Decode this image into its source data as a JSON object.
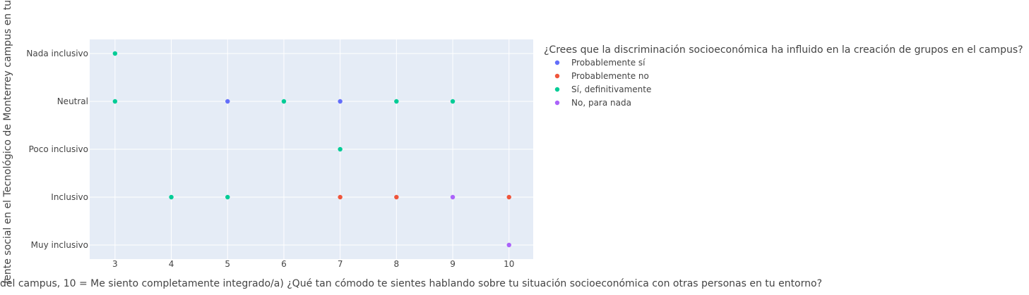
{
  "chart_data": {
    "type": "scatter",
    "xlabel": "del campus, 10 = Me siento completamente integrado/a) ¿Qué tan cómodo te sientes hablando sobre tu situación socioeconómica con otras personas en tu entorno?",
    "ylabel": "iente social en el Tecnológico de Monterrey campus en tu",
    "x_ticks": [
      3,
      4,
      5,
      6,
      7,
      8,
      9,
      10
    ],
    "xlim": [
      2.55,
      10.43
    ],
    "y_categories": [
      "Muy inclusivo",
      "Inclusivo",
      "Poco inclusivo",
      "Neutral",
      "Nada inclusivo"
    ],
    "grid": true,
    "legend": {
      "title": "¿Crees que la discriminación socioeconómica ha influido en la creación de grupos en el campus?",
      "placement": "right"
    },
    "series": [
      {
        "name": "Probablemente sí",
        "color": "#636efa",
        "points": [
          {
            "x": 5,
            "y": "Neutral"
          },
          {
            "x": 7,
            "y": "Neutral"
          }
        ]
      },
      {
        "name": "Probablemente no",
        "color": "#ef553b",
        "points": [
          {
            "x": 7,
            "y": "Inclusivo"
          },
          {
            "x": 8,
            "y": "Inclusivo"
          },
          {
            "x": 10,
            "y": "Inclusivo"
          }
        ]
      },
      {
        "name": "Sí, definitivamente",
        "color": "#00cc96",
        "points": [
          {
            "x": 3,
            "y": "Nada inclusivo"
          },
          {
            "x": 3,
            "y": "Neutral"
          },
          {
            "x": 6,
            "y": "Neutral"
          },
          {
            "x": 8,
            "y": "Neutral"
          },
          {
            "x": 9,
            "y": "Neutral"
          },
          {
            "x": 7,
            "y": "Poco inclusivo"
          },
          {
            "x": 4,
            "y": "Inclusivo"
          },
          {
            "x": 5,
            "y": "Inclusivo"
          }
        ]
      },
      {
        "name": "No, para nada",
        "color": "#ab63fa",
        "points": [
          {
            "x": 9,
            "y": "Inclusivo"
          },
          {
            "x": 10,
            "y": "Muy inclusivo"
          }
        ]
      }
    ],
    "plot_bg": "#e5ecf6"
  }
}
